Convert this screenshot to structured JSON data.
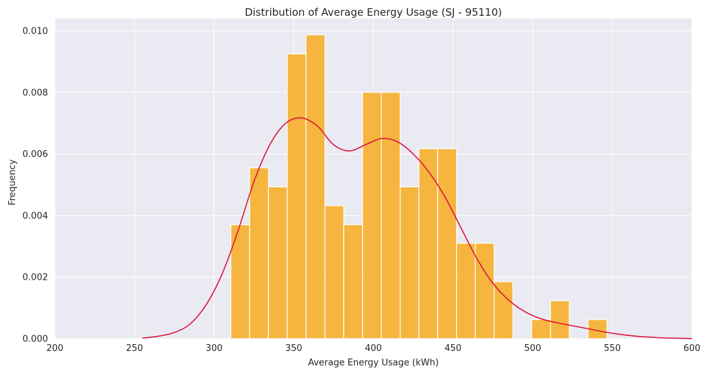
{
  "chart_data": {
    "type": "bar",
    "title": "Distribution of Average Energy Usage (SJ - 95110)",
    "xlabel": "Average Energy Usage (kWh)",
    "ylabel": "Frequency",
    "xlim": [
      200,
      600
    ],
    "ylim": [
      0,
      0.0104
    ],
    "xticks": [
      "200",
      "250",
      "300",
      "350",
      "400",
      "450",
      "500",
      "550",
      "600"
    ],
    "yticks": [
      "0.000",
      "0.002",
      "0.004",
      "0.006",
      "0.008",
      "0.010"
    ],
    "grid": true,
    "bar_color": "#f7ac1e",
    "bar_edge_color": "#ffffff",
    "kde_color": "#dc143c",
    "background_color": "#eaeaf2",
    "bin_edges": [
      310.5,
      322.3,
      334.1,
      345.9,
      357.7,
      369.6,
      381.4,
      393.2,
      405.0,
      416.8,
      428.6,
      440.4,
      452.2,
      464.0,
      475.8,
      487.6,
      499.4,
      511.2,
      523.0,
      534.8,
      546.6
    ],
    "bins": [
      {
        "x0": 310.5,
        "x1": 322.3,
        "value": 0.0037
      },
      {
        "x0": 322.3,
        "x1": 334.1,
        "value": 0.00555
      },
      {
        "x0": 334.1,
        "x1": 345.9,
        "value": 0.00493
      },
      {
        "x0": 345.9,
        "x1": 357.7,
        "value": 0.00925
      },
      {
        "x0": 357.7,
        "x1": 369.6,
        "value": 0.00987
      },
      {
        "x0": 369.6,
        "x1": 381.4,
        "value": 0.00432
      },
      {
        "x0": 381.4,
        "x1": 393.2,
        "value": 0.0037
      },
      {
        "x0": 393.2,
        "x1": 405.0,
        "value": 0.008
      },
      {
        "x0": 405.0,
        "x1": 416.8,
        "value": 0.008
      },
      {
        "x0": 416.8,
        "x1": 428.6,
        "value": 0.00493
      },
      {
        "x0": 428.6,
        "x1": 440.4,
        "value": 0.00617
      },
      {
        "x0": 440.4,
        "x1": 452.2,
        "value": 0.00617
      },
      {
        "x0": 452.2,
        "x1": 464.0,
        "value": 0.0031
      },
      {
        "x0": 464.0,
        "x1": 475.8,
        "value": 0.0031
      },
      {
        "x0": 475.8,
        "x1": 487.6,
        "value": 0.00185
      },
      {
        "x0": 499.4,
        "x1": 511.2,
        "value": 0.00062
      },
      {
        "x0": 511.2,
        "x1": 523.0,
        "value": 0.00123
      },
      {
        "x0": 534.8,
        "x1": 546.6,
        "value": 0.00062
      }
    ],
    "kde": {
      "x": [
        255,
        265,
        275,
        285,
        295,
        305,
        315,
        325,
        335,
        345,
        355,
        365,
        375,
        385,
        395,
        405,
        415,
        425,
        435,
        445,
        455,
        465,
        475,
        485,
        495,
        505,
        515,
        525,
        535,
        545,
        555,
        565,
        575,
        585,
        600
      ],
      "y": [
        2e-05,
        8e-05,
        0.0002,
        0.00048,
        0.0011,
        0.0021,
        0.0035,
        0.0051,
        0.0063,
        0.007,
        0.00717,
        0.0069,
        0.0063,
        0.0061,
        0.0063,
        0.0065,
        0.0064,
        0.006,
        0.0054,
        0.0046,
        0.0036,
        0.0026,
        0.0018,
        0.00125,
        0.00088,
        0.00065,
        0.00052,
        0.00042,
        0.00032,
        0.00022,
        0.00014,
        8e-05,
        4.5e-05,
        2e-05,
        5e-06
      ]
    }
  }
}
